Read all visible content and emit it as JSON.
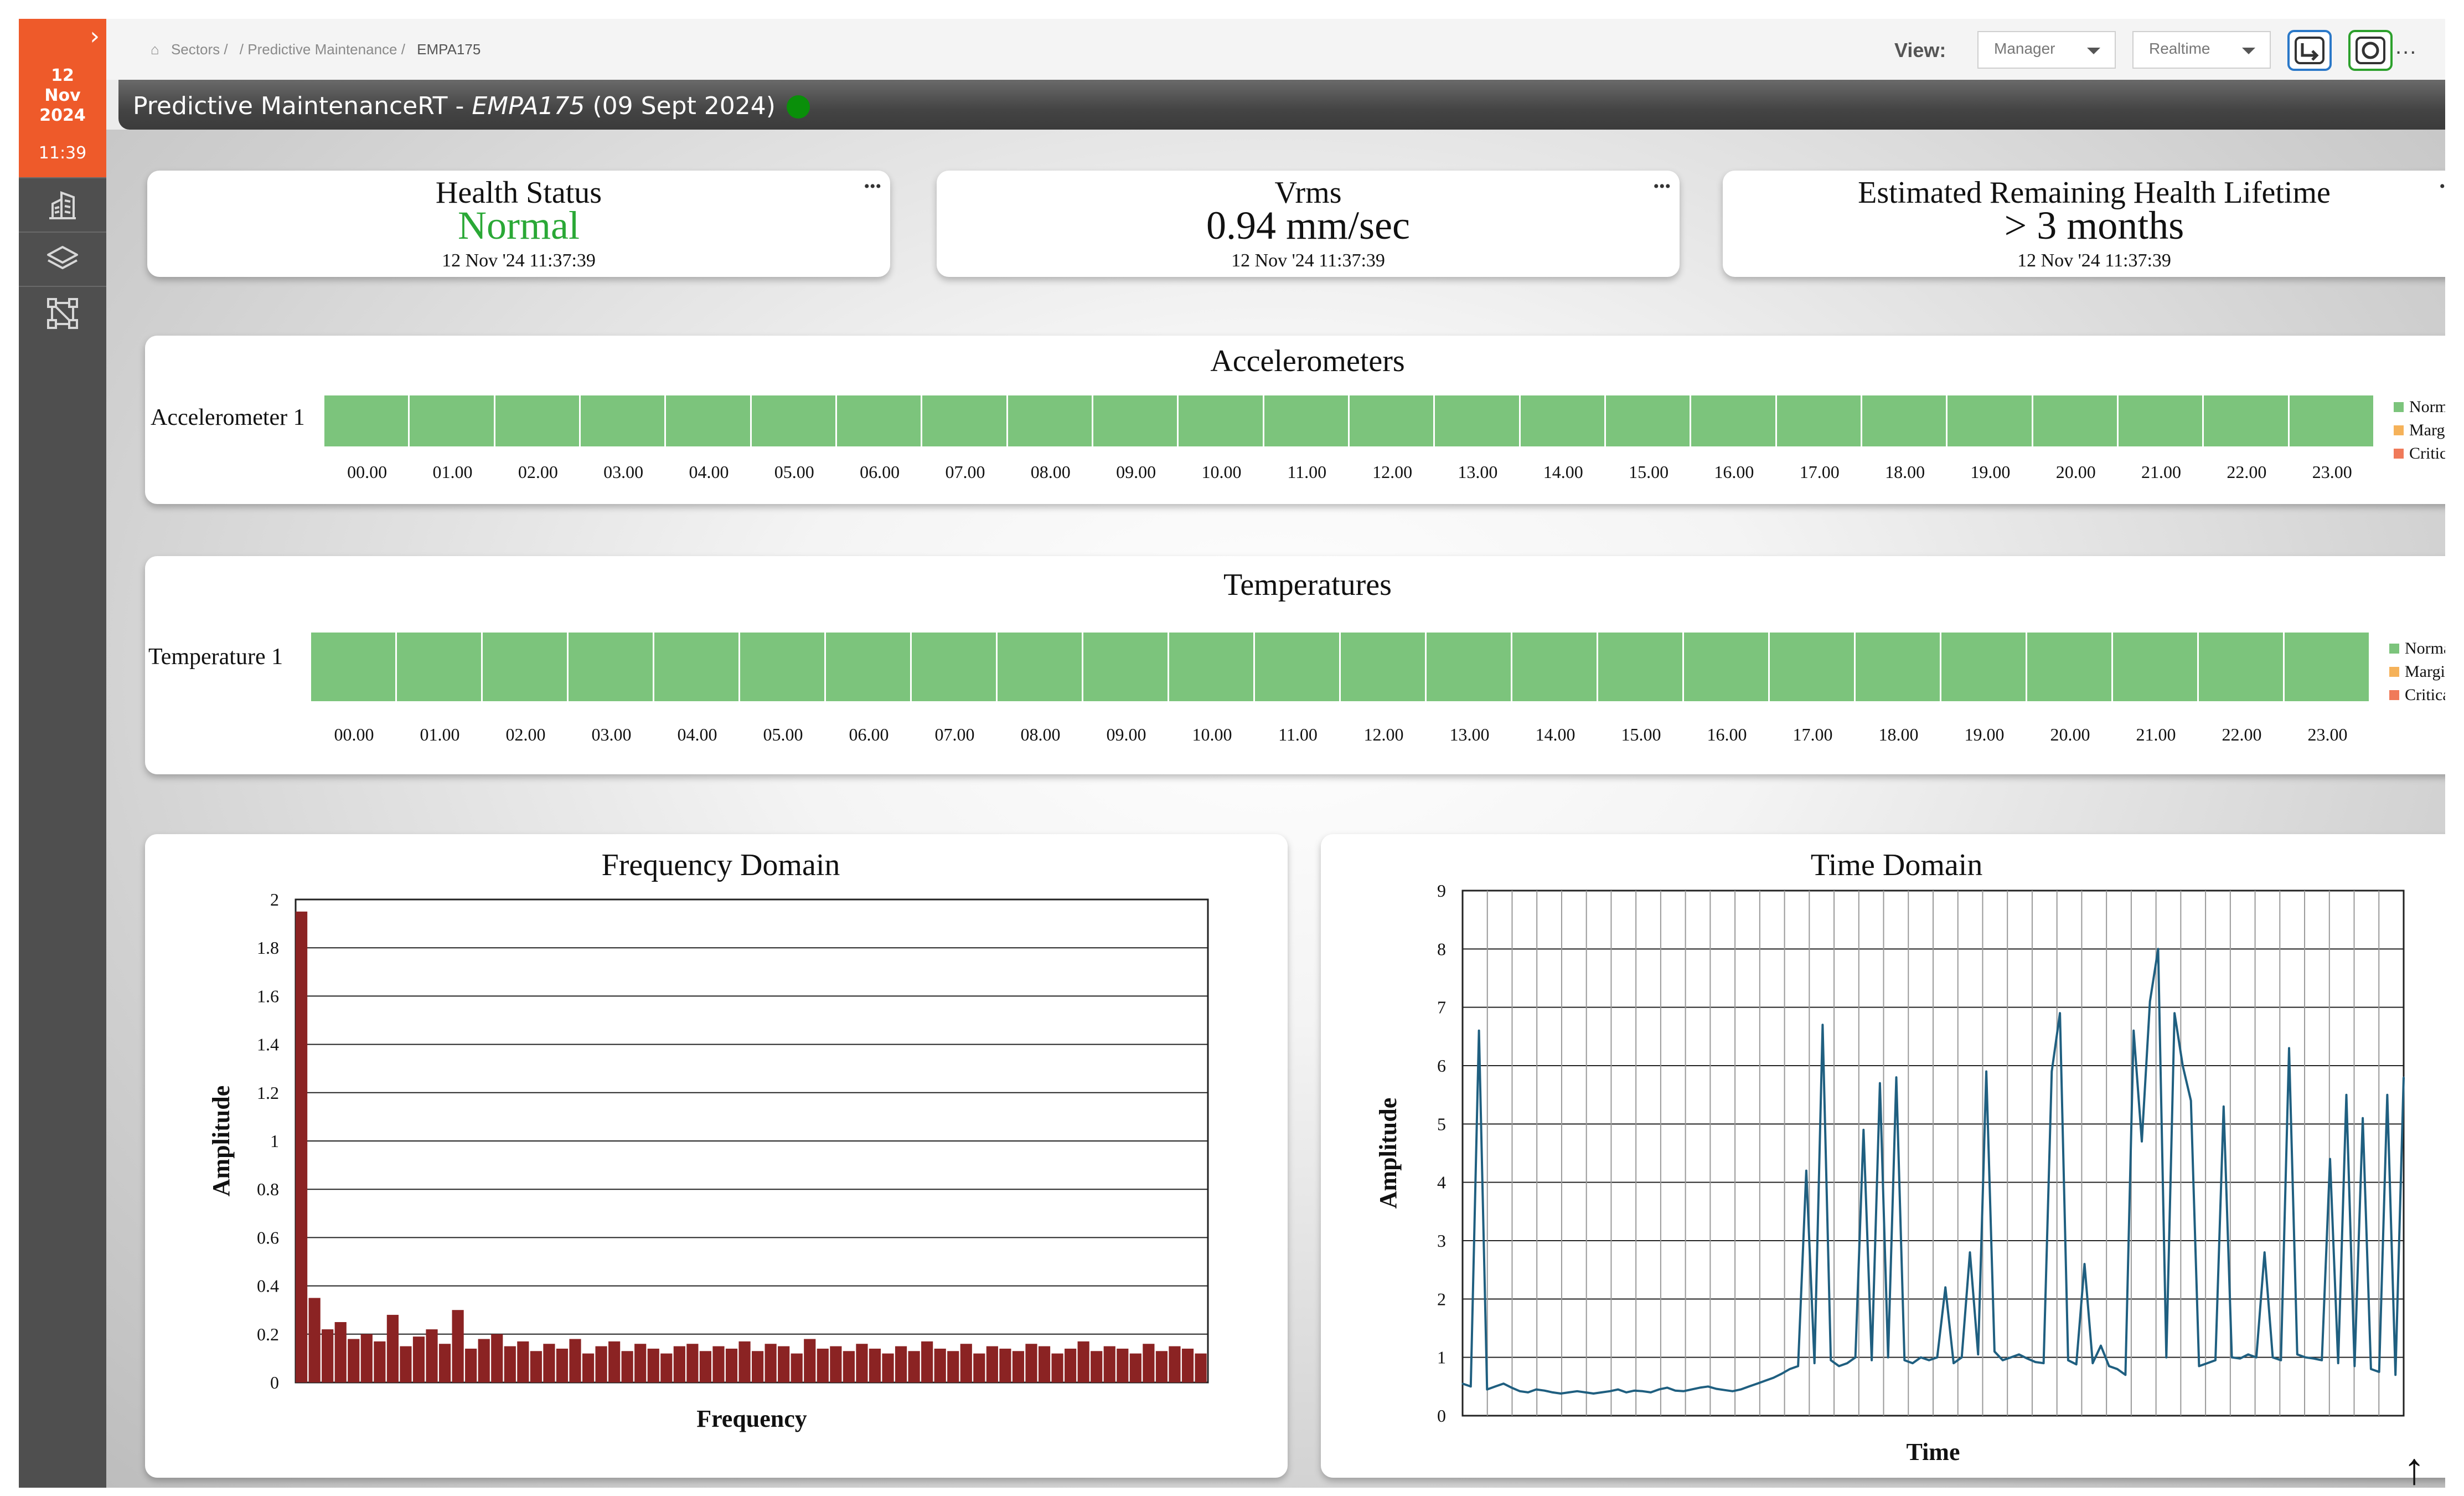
{
  "sidebar": {
    "date_day": "12",
    "date_month": "Nov",
    "date_year": "2024",
    "time": "11:39",
    "items": [
      {
        "icon": "building-icon"
      },
      {
        "icon": "layers-icon"
      },
      {
        "icon": "network-icon"
      }
    ]
  },
  "breadcrumb": [
    "Sectors /",
    "/ Predictive Maintenance /",
    "EMPA175"
  ],
  "toolbar": {
    "view_label": "View:",
    "view_value": "Manager",
    "mode_value": "Realtime",
    "more": "..."
  },
  "page_title": {
    "prefix": "Predictive MaintenanceRT - ",
    "asset": "EMPA175",
    "date": " (09 Sept 2024)"
  },
  "kpis": [
    {
      "title": "Health Status",
      "value": "Normal",
      "timestamp": "12 Nov '24 11:37:39",
      "value_color": "#2aa836"
    },
    {
      "title": "Vrms",
      "value": "0.94 mm/sec",
      "timestamp": "12 Nov '24 11:37:39",
      "value_color": "#111111"
    },
    {
      "title": "Estimated Remaining Health Lifetime",
      "value": "> 3 months",
      "timestamp": "12 Nov '24 11:37:39",
      "value_color": "#111111"
    }
  ],
  "accelerometers": {
    "title": "Accelerometers",
    "row_label": "Accelerometer 1",
    "hours": [
      "00.00",
      "01.00",
      "02.00",
      "03.00",
      "04.00",
      "05.00",
      "06.00",
      "07.00",
      "08.00",
      "09.00",
      "10.00",
      "11.00",
      "12.00",
      "13.00",
      "14.00",
      "15.00",
      "16.00",
      "17.00",
      "18.00",
      "19.00",
      "20.00",
      "21.00",
      "22.00",
      "23.00"
    ]
  },
  "temperatures": {
    "title": "Temperatures",
    "row_label": "Temperature 1",
    "hours": [
      "00.00",
      "01.00",
      "02.00",
      "03.00",
      "04.00",
      "05.00",
      "06.00",
      "07.00",
      "08.00",
      "09.00",
      "10.00",
      "11.00",
      "12.00",
      "13.00",
      "14.00",
      "15.00",
      "16.00",
      "17.00",
      "18.00",
      "19.00",
      "20.00",
      "21.00",
      "22.00",
      "23.00"
    ]
  },
  "legend": [
    {
      "label": "Normal",
      "color": "#7cc47c"
    },
    {
      "label": "Marginal",
      "color": "#f5b25a"
    },
    {
      "label": "Critical",
      "color": "#f07a5a"
    }
  ],
  "chart_data": [
    {
      "type": "bar",
      "title": "Frequency Domain",
      "xlabel": "Frequency",
      "ylabel": "Amplitude",
      "ylim": [
        0,
        2
      ],
      "yticks": [
        "0",
        "0.2",
        "0.4",
        "0.6",
        "0.8",
        "1",
        "1.2",
        "1.4",
        "1.6",
        "1.8",
        "2"
      ],
      "grid": true,
      "color": "#8b2323",
      "series": [
        {
          "values": [
            1.95,
            0.35,
            0.22,
            0.25,
            0.18,
            0.2,
            0.17,
            0.28,
            0.15,
            0.19,
            0.22,
            0.16,
            0.3,
            0.14,
            0.18,
            0.2,
            0.15,
            0.17,
            0.13,
            0.16,
            0.14,
            0.18,
            0.12,
            0.15,
            0.17,
            0.13,
            0.16,
            0.14,
            0.12,
            0.15,
            0.16,
            0.13,
            0.15,
            0.14,
            0.17,
            0.13,
            0.16,
            0.15,
            0.12,
            0.18,
            0.14,
            0.15,
            0.13,
            0.16,
            0.14,
            0.12,
            0.15,
            0.13,
            0.17,
            0.14,
            0.13,
            0.16,
            0.12,
            0.15,
            0.14,
            0.13,
            0.16,
            0.15,
            0.12,
            0.14,
            0.17,
            0.13,
            0.15,
            0.14,
            0.12,
            0.16,
            0.13,
            0.15,
            0.14,
            0.12
          ]
        }
      ]
    },
    {
      "type": "line",
      "title": "Time Domain",
      "xlabel": "Time",
      "ylabel": "Amplitude",
      "ylim": [
        0,
        9
      ],
      "yticks": [
        "0",
        "1",
        "2",
        "3",
        "4",
        "5",
        "6",
        "7",
        "8",
        "9"
      ],
      "grid": true,
      "color": "#1f5f80",
      "series": [
        {
          "values": [
            0.55,
            0.5,
            6.6,
            0.45,
            0.5,
            0.55,
            0.48,
            0.42,
            0.4,
            0.45,
            0.43,
            0.4,
            0.38,
            0.4,
            0.42,
            0.4,
            0.38,
            0.4,
            0.42,
            0.45,
            0.4,
            0.43,
            0.42,
            0.4,
            0.45,
            0.48,
            0.43,
            0.42,
            0.45,
            0.48,
            0.5,
            0.46,
            0.44,
            0.42,
            0.45,
            0.5,
            0.55,
            0.6,
            0.65,
            0.72,
            0.8,
            0.85,
            4.2,
            0.9,
            6.7,
            0.95,
            0.85,
            0.9,
            1.0,
            4.9,
            0.95,
            5.7,
            1.0,
            5.8,
            0.95,
            0.9,
            1.0,
            0.95,
            1.0,
            2.2,
            0.9,
            1.0,
            2.8,
            1.05,
            5.9,
            1.1,
            0.95,
            1.0,
            1.05,
            0.98,
            0.92,
            0.9,
            5.9,
            6.9,
            0.95,
            0.88,
            2.6,
            0.9,
            1.2,
            0.85,
            0.8,
            0.7,
            6.6,
            4.7,
            7.1,
            8.0,
            1.0,
            6.9,
            6.0,
            5.4,
            0.85,
            0.9,
            0.95,
            5.3,
            1.0,
            0.98,
            1.05,
            1.0,
            2.8,
            1.0,
            0.95,
            6.3,
            1.05,
            1.0,
            0.98,
            0.95,
            4.4,
            0.9,
            5.5,
            0.85,
            5.1,
            0.8,
            0.75,
            5.5,
            0.7,
            5.8
          ]
        }
      ]
    }
  ]
}
